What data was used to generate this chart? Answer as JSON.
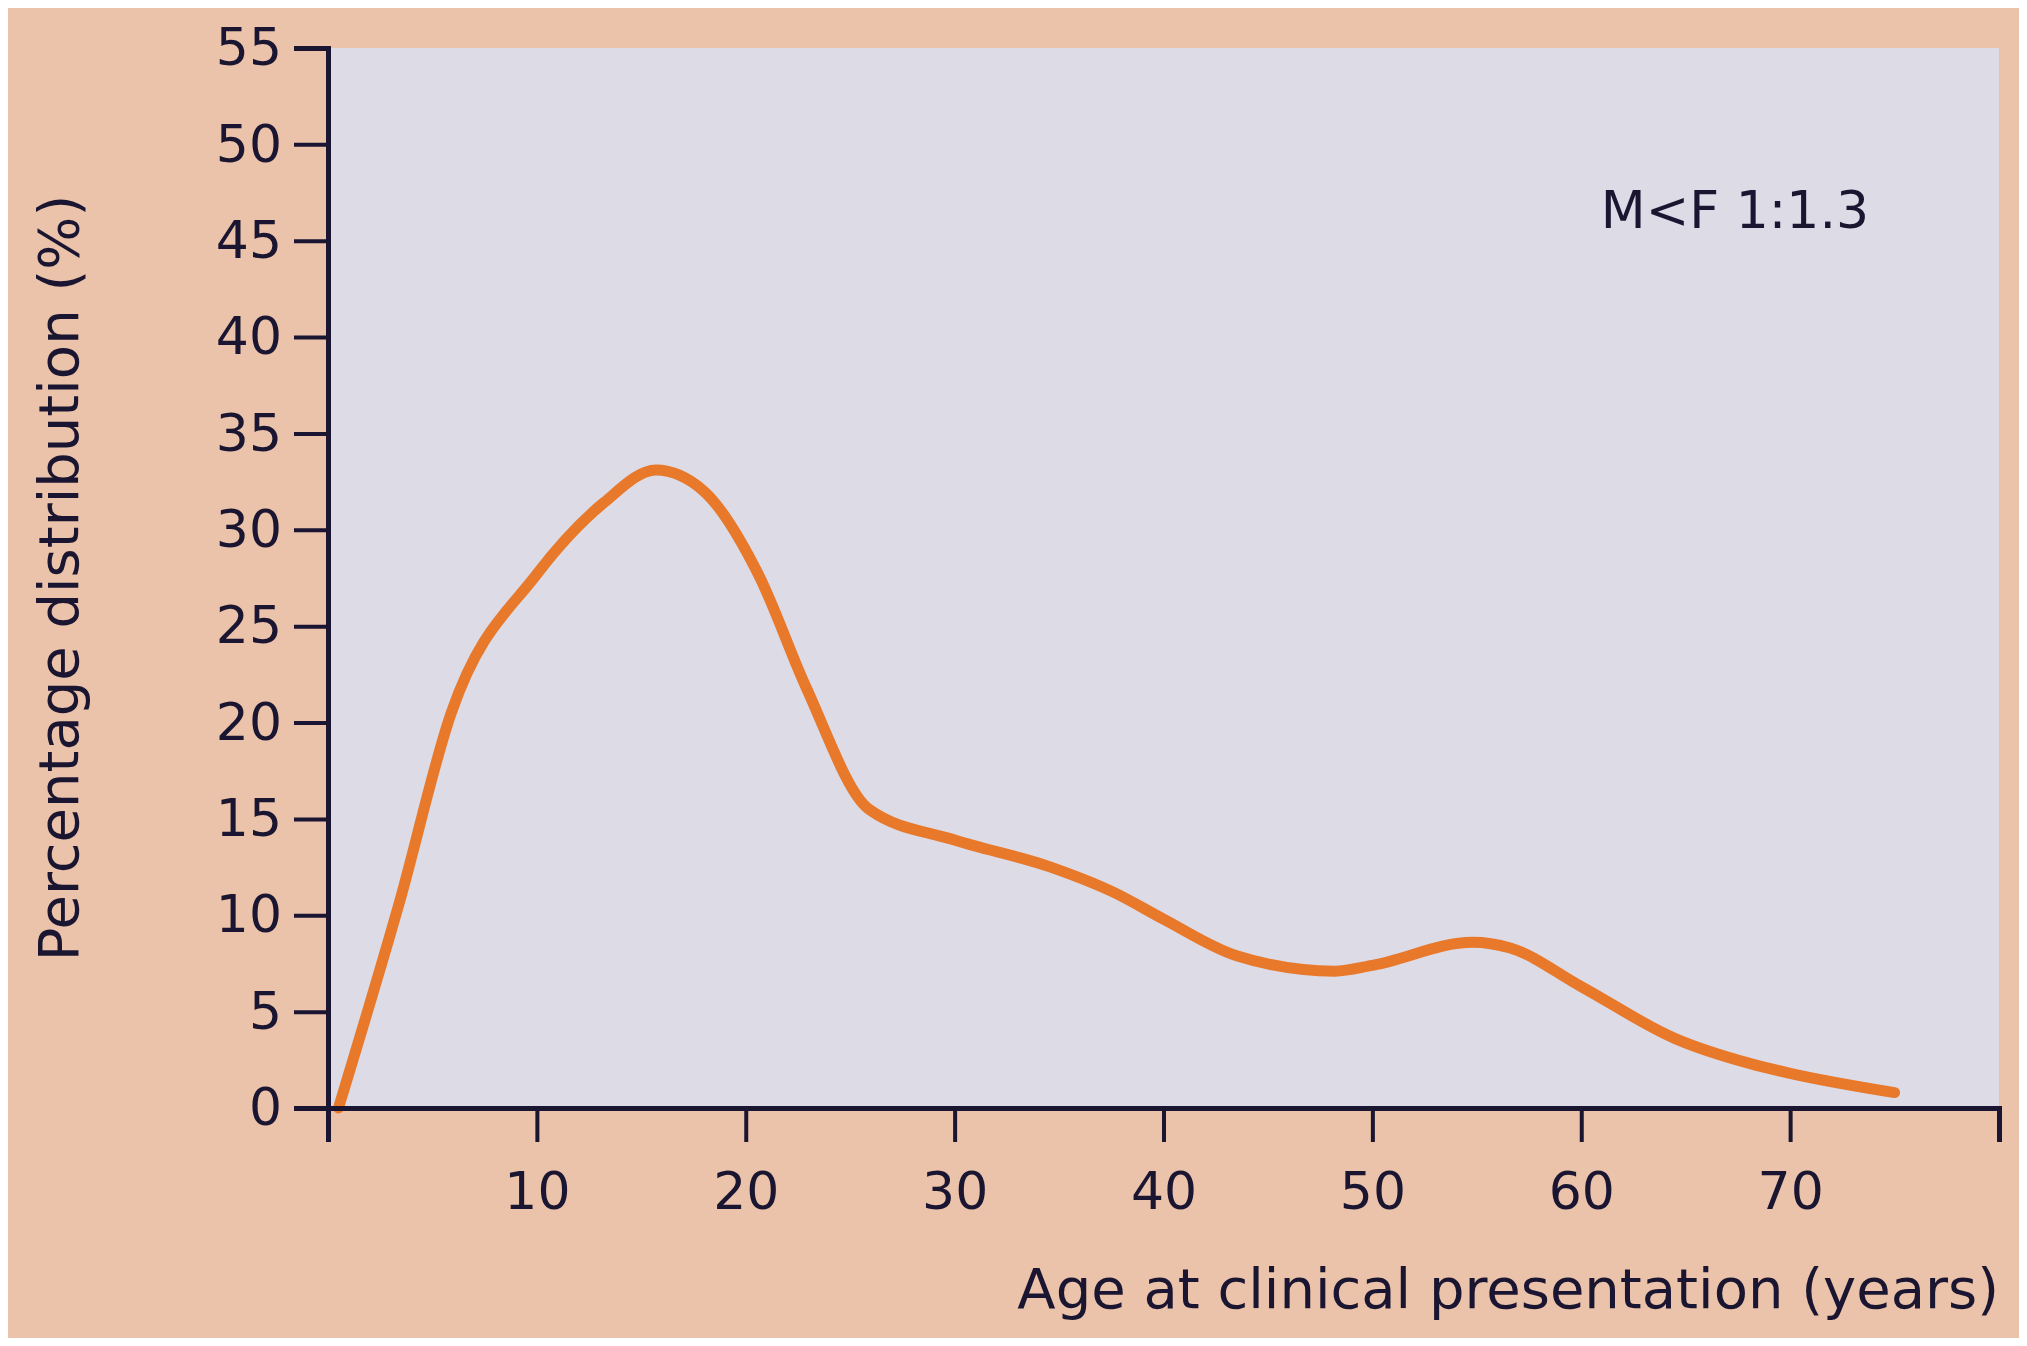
{
  "chart_data": {
    "type": "line",
    "xlabel": "Age at clinical presentation (years)",
    "ylabel": "Percentage distribution (%)",
    "annotations": [
      "M<F 1:1.3"
    ],
    "x": [
      0.5,
      3.4,
      5.9,
      10,
      13.2,
      15.7,
      18,
      20.6,
      22.9,
      25.9,
      30,
      34.6,
      37.6,
      40,
      43.5,
      48.2,
      50,
      54.8,
      56.6,
      60,
      64.5,
      68.1,
      70,
      75
    ],
    "series": [
      {
        "color": "#e8782a",
        "values": [
          0,
          10.6,
          20.5,
          27.7,
          31.4,
          33.1,
          32,
          27.7,
          21.8,
          15.5,
          13.9,
          12.5,
          11.2,
          9.8,
          7.9,
          7.1,
          7.4,
          8.6,
          8.3,
          6.3,
          3.6,
          2.3,
          1.8,
          0.8
        ]
      }
    ],
    "xlim": [
      0,
      80
    ],
    "xticks": [
      {
        "value": 0,
        "label": null
      },
      10,
      20,
      30,
      40,
      50,
      60,
      70,
      {
        "value": 80,
        "label": null
      }
    ],
    "ylim": [
      0,
      55
    ],
    "yticks": [
      0,
      5,
      10,
      15,
      20,
      25,
      30,
      35,
      40,
      45,
      50,
      55
    ],
    "grid": false,
    "marker": "none",
    "line_style": "solid"
  }
}
